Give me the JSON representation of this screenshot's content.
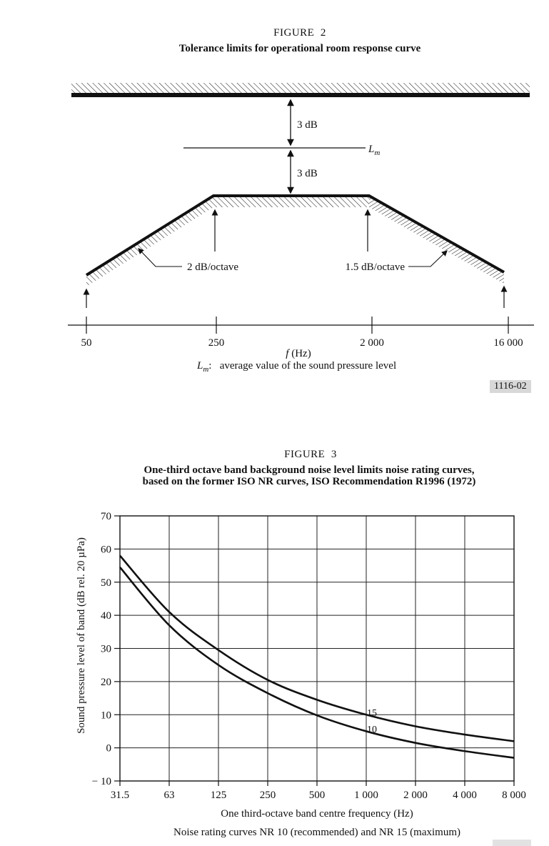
{
  "fig2": {
    "figure_label": "FIGURE  2",
    "title": "Tolerance limits for operational room response curve",
    "upper_margin_label": "3 dB",
    "lower_margin_label": "3 dB",
    "lm_symbol": "L",
    "lm_sub": "m",
    "left_slope_label": "2 dB/octave",
    "right_slope_label": "1.5 dB/octave",
    "freq_ticks": [
      "50",
      "250",
      "2 000",
      "16 000"
    ],
    "axis_symbol": "f",
    "axis_unit": "(Hz)",
    "caption_symbol": "L",
    "caption_sub": "m",
    "caption_colon": ":",
    "caption_text": "average value of the sound pressure level",
    "badge": "1116-02"
  },
  "fig3": {
    "figure_label": "FIGURE  3",
    "title_line1": "One-third octave band background noise level limits noise rating curves,",
    "title_line2": "based on the former ISO NR curves, ISO Recommendation R1996 (1972)",
    "caption": "Noise rating curves NR 10 (recommended) and NR 15 (maximum)"
  },
  "chart_data": {
    "type": "line",
    "x": [
      31.5,
      63,
      125,
      250,
      500,
      1000,
      2000,
      4000,
      8000
    ],
    "x_scale": "log-octave",
    "x_tick_labels": [
      "31.5",
      "63",
      "125",
      "250",
      "500",
      "1 000",
      "2 000",
      "4 000",
      "8 000"
    ],
    "xlabel": "One third-octave band centre frequency (Hz)",
    "ylabel": "Sound pressure level of band (dB rel. 20 µPa)",
    "ylim": [
      -10,
      70
    ],
    "y_ticks": [
      70,
      60,
      50,
      40,
      30,
      20,
      10,
      0,
      -10
    ],
    "y_tick_labels": [
      "70",
      "60",
      "50",
      "40",
      "30",
      "20",
      "10",
      "0",
      "− 10"
    ],
    "grid": true,
    "legend_position": "inline-curve-labels",
    "series": [
      {
        "name": "NR 15",
        "label": "15",
        "values": [
          58,
          41,
          29.5,
          20.5,
          14.5,
          10,
          6.5,
          4,
          2
        ]
      },
      {
        "name": "NR 10",
        "label": "10",
        "values": [
          54.5,
          37,
          25,
          16.5,
          9.8,
          5,
          1.5,
          -1,
          -3
        ]
      }
    ]
  }
}
